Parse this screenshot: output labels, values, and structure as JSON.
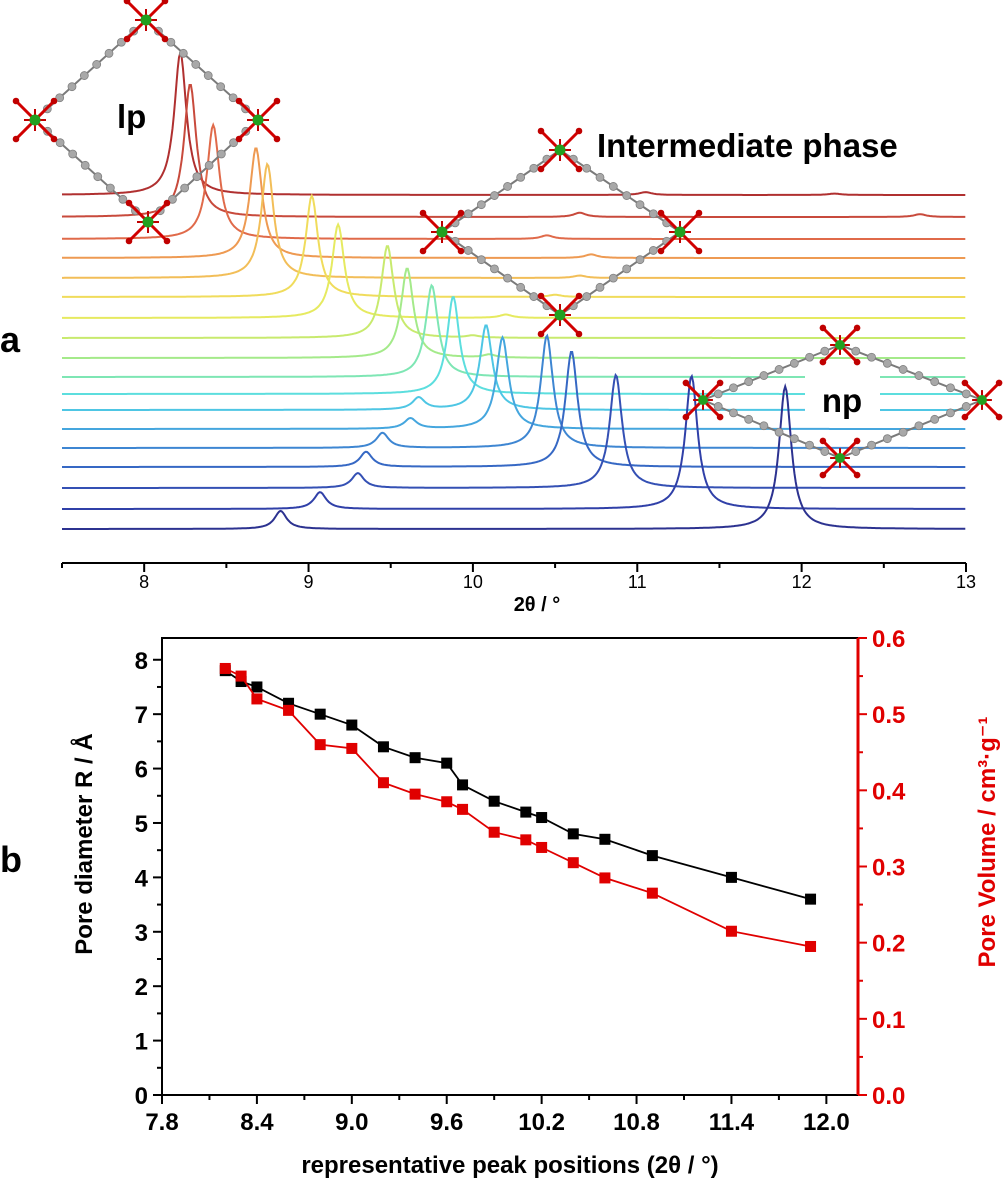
{
  "panel_a": {
    "letter": "a",
    "xlabel": "2θ / °",
    "phase_labels": {
      "lp": "lp",
      "intermediate": "Intermediate phase",
      "np": "np"
    }
  },
  "panel_b": {
    "letter": "b"
  },
  "chart_data": [
    {
      "type": "line",
      "panel": "a",
      "title": "",
      "xlabel": "2θ / °",
      "ylabel": "",
      "xlim": [
        7.5,
        13
      ],
      "x_ticks": [
        8,
        9,
        10,
        11,
        12,
        13
      ],
      "series": [
        {
          "color": "#b03030",
          "peaks": [
            [
              8.22,
              1.0
            ],
            [
              11.05,
              0.02
            ],
            [
              12.2,
              0.01
            ]
          ]
        },
        {
          "color": "#c84a3c",
          "peaks": [
            [
              8.28,
              0.95
            ],
            [
              10.65,
              0.03
            ],
            [
              12.72,
              0.02
            ]
          ]
        },
        {
          "color": "#e06a4a",
          "peaks": [
            [
              8.42,
              0.95
            ],
            [
              10.45,
              0.03
            ]
          ]
        },
        {
          "color": "#ee9a52",
          "peaks": [
            [
              8.68,
              0.92
            ],
            [
              10.72,
              0.03
            ]
          ]
        },
        {
          "color": "#f2be58",
          "peaks": [
            [
              8.75,
              0.95
            ],
            [
              10.65,
              0.02
            ]
          ]
        },
        {
          "color": "#f0dc5c",
          "peaks": [
            [
              9.02,
              0.92
            ],
            [
              10.5,
              0.02
            ]
          ]
        },
        {
          "color": "#e6ea60",
          "peaks": [
            [
              9.18,
              0.85
            ],
            [
              10.2,
              0.03
            ]
          ]
        },
        {
          "color": "#c8ea6e",
          "peaks": [
            [
              9.48,
              0.88
            ],
            [
              10.0,
              0.02
            ]
          ]
        },
        {
          "color": "#a4ea8a",
          "peaks": [
            [
              9.6,
              0.9
            ],
            [
              10.1,
              0.03
            ]
          ]
        },
        {
          "color": "#7ee6b4",
          "peaks": [
            [
              9.75,
              0.9
            ]
          ]
        },
        {
          "color": "#5cdede",
          "peaks": [
            [
              9.88,
              0.92
            ]
          ]
        },
        {
          "color": "#4ec6e4",
          "peaks": [
            [
              9.67,
              0.12
            ],
            [
              10.08,
              0.85
            ]
          ]
        },
        {
          "color": "#45a6de",
          "peaks": [
            [
              9.62,
              0.1
            ],
            [
              10.18,
              0.88
            ]
          ]
        },
        {
          "color": "#3e86d2",
          "peaks": [
            [
              9.45,
              0.12
            ],
            [
              10.45,
              0.9
            ]
          ]
        },
        {
          "color": "#3668c4",
          "peaks": [
            [
              9.35,
              0.12
            ],
            [
              10.6,
              0.92
            ]
          ]
        },
        {
          "color": "#3450b4",
          "peaks": [
            [
              9.3,
              0.12
            ],
            [
              10.87,
              0.92
            ]
          ]
        },
        {
          "color": "#3040a8",
          "peaks": [
            [
              9.07,
              0.12
            ],
            [
              11.33,
              0.95
            ]
          ]
        },
        {
          "color": "#2c3290",
          "peaks": [
            [
              8.83,
              0.12
            ],
            [
              11.9,
              0.95
            ]
          ]
        }
      ]
    },
    {
      "type": "line",
      "panel": "b",
      "title": "",
      "xlabel": "representative peak positions (2θ / °)",
      "ylabel": "Pore diameter R / Å",
      "y2label": "Pore Volume / cm³·g⁻¹",
      "xlim": [
        7.8,
        12.2
      ],
      "ylim": [
        0,
        8.4
      ],
      "y2lim": [
        0,
        0.6
      ],
      "x_ticks": [
        "7.8",
        "8.4",
        "9.0",
        "9.6",
        "10.2",
        "10.8",
        "11.4",
        "12.0"
      ],
      "y_ticks": [
        "0",
        "1",
        "2",
        "3",
        "4",
        "5",
        "6",
        "7",
        "8"
      ],
      "y2_ticks": [
        "0.0",
        "0.1",
        "0.2",
        "0.3",
        "0.4",
        "0.5",
        "0.6"
      ],
      "series": [
        {
          "name": "Pore diameter",
          "axis": "left",
          "color": "#000000",
          "x": [
            8.2,
            8.3,
            8.4,
            8.6,
            8.8,
            9.0,
            9.2,
            9.4,
            9.6,
            9.7,
            9.9,
            10.1,
            10.2,
            10.4,
            10.6,
            10.9,
            11.4,
            11.9
          ],
          "values": [
            7.8,
            7.6,
            7.5,
            7.2,
            7.0,
            6.8,
            6.4,
            6.2,
            6.1,
            5.7,
            5.4,
            5.2,
            5.1,
            4.8,
            4.7,
            4.4,
            4.0,
            3.6
          ]
        },
        {
          "name": "Pore volume",
          "axis": "right",
          "color": "#e00000",
          "x": [
            8.2,
            8.3,
            8.4,
            8.6,
            8.8,
            9.0,
            9.2,
            9.4,
            9.6,
            9.7,
            9.9,
            10.1,
            10.2,
            10.4,
            10.6,
            10.9,
            11.4,
            11.9
          ],
          "values": [
            0.56,
            0.55,
            0.52,
            0.505,
            0.46,
            0.455,
            0.41,
            0.395,
            0.385,
            0.375,
            0.345,
            0.335,
            0.325,
            0.305,
            0.285,
            0.265,
            0.215,
            0.195
          ]
        }
      ]
    }
  ]
}
